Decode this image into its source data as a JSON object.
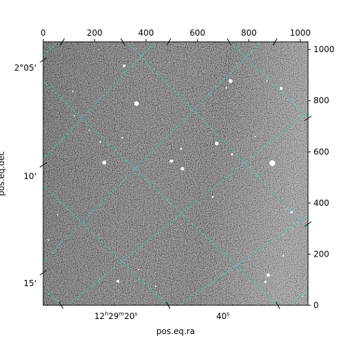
{
  "chart_data": {
    "type": "image",
    "image_colormap": "grayscale",
    "grid_color": "#40d0d0",
    "grid": true,
    "pixel_axes": {
      "x_ticks": [
        0,
        200,
        400,
        600,
        800,
        1000
      ],
      "y_ticks": [
        0,
        200,
        400,
        600,
        800,
        1000
      ],
      "x_range": [
        0,
        1030
      ],
      "y_range": [
        0,
        1030
      ]
    },
    "world_axes": {
      "xlabel": "pos.eq.ra",
      "ylabel": "pos.eq.dec",
      "ra_ticks": [
        {
          "label": "12h29m20s",
          "h": "12",
          "m": "29",
          "s": "20"
        },
        {
          "label": "40s",
          "s": "40"
        }
      ],
      "dec_ticks": [
        {
          "label": "2°05'"
        },
        {
          "label": "10'"
        },
        {
          "label": "15'"
        }
      ]
    }
  }
}
